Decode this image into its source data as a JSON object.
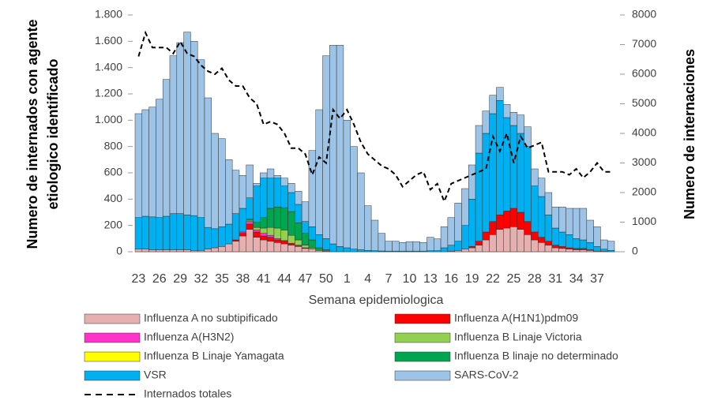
{
  "chart_data": {
    "type": "bar",
    "stacked": true,
    "x_label": "Semana epidemiologica",
    "y_label": [
      "Numero de internados con agente",
      "etiologico identificado"
    ],
    "y2_label": "Numero de internaciones",
    "categories": [
      "23",
      null,
      null,
      "26",
      null,
      null,
      "29",
      null,
      null,
      "32",
      null,
      null,
      "35",
      null,
      null,
      "38",
      null,
      null,
      "41",
      null,
      null,
      "44",
      null,
      null,
      "47",
      null,
      null,
      "50",
      null,
      null,
      "1",
      null,
      null,
      "4",
      null,
      null,
      "7",
      null,
      null,
      "10",
      null,
      null,
      "13",
      null,
      null,
      "16",
      null,
      null,
      "19",
      null,
      null,
      "22",
      null,
      null,
      "25",
      null,
      null,
      "28",
      null,
      null,
      "31",
      null,
      null,
      "34",
      null,
      null,
      "37",
      null,
      null
    ],
    "ylim": [
      0,
      1800
    ],
    "yticks": [
      0,
      200,
      400,
      600,
      800,
      {
        "value": 1000,
        "label": "1.000"
      },
      {
        "value": 1200,
        "label": "1.200"
      },
      {
        "value": 1400,
        "label": "1.400"
      },
      {
        "value": 1600,
        "label": "1.600"
      },
      {
        "value": 1800,
        "label": "1.800"
      }
    ],
    "y2lim": [
      0,
      8000
    ],
    "y2ticks": [
      0,
      1000,
      2000,
      3000,
      4000,
      5000,
      6000,
      7000,
      8000
    ],
    "series": [
      {
        "name": "Influenza A no subtipificado",
        "color": "#e6b0b0",
        "values": [
          20,
          20,
          15,
          15,
          15,
          15,
          15,
          15,
          10,
          10,
          20,
          30,
          40,
          60,
          80,
          120,
          170,
          110,
          90,
          80,
          70,
          60,
          50,
          40,
          25,
          20,
          10,
          5,
          0,
          0,
          0,
          0,
          0,
          0,
          0,
          0,
          0,
          0,
          0,
          0,
          0,
          0,
          0,
          0,
          0,
          5,
          10,
          20,
          30,
          50,
          90,
          130,
          170,
          180,
          190,
          170,
          130,
          90,
          70,
          50,
          30,
          25,
          20,
          15,
          15,
          10,
          5,
          5,
          0
        ]
      },
      {
        "name": "Influenza A(H1N1)pdm09",
        "color": "#ff0000",
        "values": [
          0,
          0,
          0,
          0,
          0,
          0,
          0,
          0,
          0,
          0,
          0,
          0,
          0,
          0,
          10,
          20,
          40,
          40,
          30,
          30,
          20,
          20,
          15,
          10,
          5,
          0,
          0,
          0,
          0,
          0,
          0,
          0,
          0,
          0,
          0,
          0,
          0,
          0,
          0,
          0,
          0,
          0,
          0,
          0,
          0,
          0,
          0,
          0,
          10,
          30,
          60,
          100,
          110,
          130,
          140,
          130,
          100,
          60,
          40,
          30,
          20,
          15,
          10,
          10,
          10,
          5,
          0,
          0,
          0
        ]
      },
      {
        "name": "Influenza A(H3N2)",
        "color": "#ff33cc",
        "values": [
          0,
          0,
          0,
          0,
          0,
          0,
          0,
          0,
          0,
          0,
          0,
          0,
          0,
          0,
          0,
          10,
          20,
          15,
          20,
          15,
          10,
          5,
          0,
          0,
          0,
          0,
          0,
          0,
          0,
          0,
          0,
          0,
          0,
          0,
          0,
          0,
          0,
          0,
          0,
          0,
          0,
          0,
          0,
          0,
          0,
          0,
          0,
          0,
          0,
          0,
          0,
          0,
          0,
          0,
          0,
          0,
          0,
          0,
          0,
          0,
          0,
          0,
          0,
          0,
          0,
          0,
          0,
          0,
          0
        ]
      },
      {
        "name": "Influenza B Linaje Victoria",
        "color": "#92d050",
        "values": [
          0,
          0,
          0,
          0,
          0,
          0,
          0,
          0,
          0,
          0,
          0,
          0,
          0,
          0,
          0,
          0,
          10,
          20,
          40,
          60,
          80,
          80,
          60,
          40,
          20,
          10,
          0,
          0,
          0,
          0,
          0,
          0,
          0,
          0,
          0,
          0,
          0,
          0,
          0,
          0,
          0,
          0,
          0,
          0,
          0,
          0,
          0,
          0,
          0,
          0,
          0,
          0,
          0,
          0,
          0,
          0,
          0,
          0,
          0,
          0,
          0,
          0,
          0,
          0,
          0,
          0,
          0,
          0,
          0
        ]
      },
      {
        "name": "Influenza B Linaje Yamagata",
        "color": "#ffff00",
        "values": [
          0,
          0,
          0,
          0,
          0,
          0,
          0,
          0,
          0,
          0,
          0,
          0,
          0,
          0,
          0,
          0,
          0,
          0,
          0,
          5,
          0,
          0,
          0,
          0,
          0,
          0,
          0,
          0,
          0,
          0,
          0,
          0,
          0,
          0,
          0,
          0,
          0,
          0,
          0,
          0,
          0,
          0,
          0,
          0,
          0,
          0,
          0,
          0,
          0,
          0,
          0,
          0,
          0,
          0,
          0,
          0,
          0,
          0,
          0,
          0,
          0,
          0,
          0,
          0,
          0,
          0,
          0,
          0,
          0
        ]
      },
      {
        "name": "Influenza B linaje no determinado",
        "color": "#00a550",
        "values": [
          0,
          0,
          0,
          0,
          0,
          0,
          0,
          0,
          0,
          0,
          0,
          0,
          0,
          0,
          0,
          0,
          10,
          40,
          80,
          140,
          160,
          170,
          180,
          130,
          90,
          60,
          20,
          10,
          0,
          0,
          0,
          0,
          0,
          0,
          0,
          0,
          0,
          0,
          0,
          0,
          0,
          0,
          0,
          0,
          0,
          0,
          0,
          0,
          0,
          0,
          0,
          0,
          0,
          0,
          0,
          0,
          0,
          0,
          0,
          0,
          0,
          0,
          0,
          0,
          0,
          0,
          0,
          0,
          0
        ]
      },
      {
        "name": "VSR",
        "color": "#00b0f0",
        "values": [
          240,
          250,
          250,
          245,
          255,
          275,
          275,
          265,
          265,
          250,
          165,
          145,
          150,
          150,
          200,
          180,
          160,
          275,
          300,
          230,
          220,
          165,
          145,
          140,
          90,
          100,
          100,
          85,
          60,
          40,
          30,
          20,
          15,
          10,
          8,
          6,
          5,
          5,
          5,
          5,
          5,
          5,
          8,
          8,
          30,
          45,
          70,
          180,
          360,
          670,
          750,
          820,
          870,
          710,
          630,
          600,
          570,
          350,
          310,
          200,
          130,
          110,
          100,
          75,
          65,
          55,
          35,
          15,
          10
        ]
      },
      {
        "name": "SARS-CoV-2",
        "color": "#9dc3e6",
        "values": [
          790,
          810,
          835,
          900,
          1040,
          1200,
          1300,
          1390,
          1325,
          1200,
          985,
          725,
          670,
          490,
          330,
          250,
          250,
          20,
          40,
          70,
          20,
          60,
          70,
          100,
          150,
          580,
          950,
          1390,
          1510,
          1530,
          970,
          780,
          585,
          340,
          232,
          134,
          75,
          75,
          65,
          72,
          72,
          65,
          102,
          90,
          160,
          210,
          290,
          280,
          260,
          210,
          170,
          140,
          100,
          100,
          100,
          140,
          150,
          130,
          140,
          170,
          160,
          190,
          200,
          230,
          240,
          170,
          150,
          70,
          70
        ]
      },
      {
        "name": "Internados totales",
        "type": "line",
        "axis": "y2",
        "color": "#000000",
        "values": [
          6600,
          7400,
          6900,
          6900,
          6900,
          6700,
          7100,
          6700,
          6600,
          6300,
          6100,
          6000,
          6200,
          5800,
          5600,
          5600,
          5200,
          5000,
          4300,
          4400,
          4300,
          4000,
          3500,
          3500,
          3300,
          2600,
          3200,
          3000,
          4800,
          4500,
          4800,
          4300,
          3700,
          3300,
          3100,
          2900,
          2800,
          2600,
          2200,
          2400,
          2600,
          2700,
          2100,
          2300,
          1700,
          2300,
          2400,
          2500,
          2600,
          2700,
          2800,
          3900,
          3400,
          4000,
          3000,
          3900,
          3500,
          3600,
          3700,
          2700,
          2700,
          2700,
          2600,
          2800,
          2500,
          2700,
          3000,
          2700,
          2700
        ]
      }
    ]
  }
}
